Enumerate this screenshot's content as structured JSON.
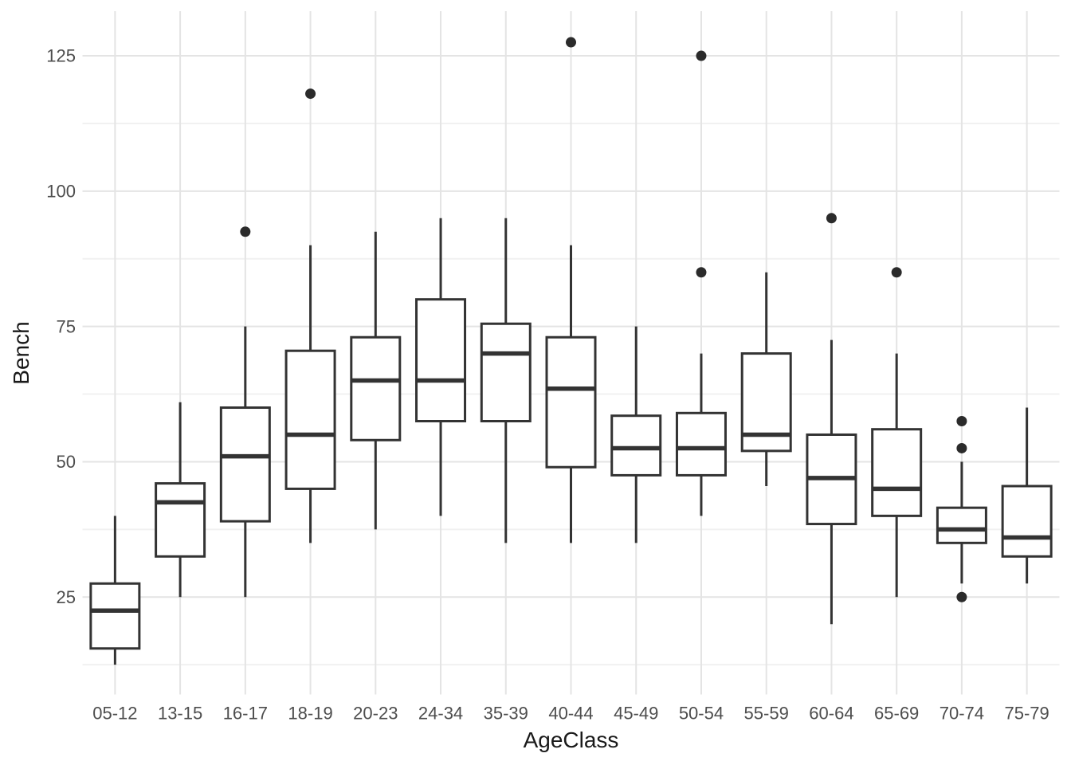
{
  "chart_data": {
    "type": "boxplot",
    "title": "",
    "xlabel": "AgeClass",
    "ylabel": "Bench",
    "ylim": [
      7,
      133.25
    ],
    "yticks_major": [
      25,
      50,
      75,
      100,
      125
    ],
    "yticks_minor": [
      12.5,
      37.5,
      62.5,
      87.5,
      112.5
    ],
    "grid": "major-and-minor",
    "legend": "none",
    "categories": [
      "05-12",
      "13-15",
      "16-17",
      "18-19",
      "20-23",
      "24-34",
      "35-39",
      "40-44",
      "45-49",
      "50-54",
      "55-59",
      "60-64",
      "65-69",
      "70-74",
      "75-79"
    ],
    "boxes": [
      {
        "category": "05-12",
        "whisker_low": 12.5,
        "q1": 15.5,
        "median": 22.5,
        "q3": 27.5,
        "whisker_high": 40,
        "outliers": []
      },
      {
        "category": "13-15",
        "whisker_low": 25,
        "q1": 32.5,
        "median": 42.5,
        "q3": 46,
        "whisker_high": 61,
        "outliers": []
      },
      {
        "category": "16-17",
        "whisker_low": 25,
        "q1": 39,
        "median": 51,
        "q3": 60,
        "whisker_high": 75,
        "outliers": [
          92.5
        ]
      },
      {
        "category": "18-19",
        "whisker_low": 35,
        "q1": 45,
        "median": 55,
        "q3": 70.5,
        "whisker_high": 90,
        "outliers": [
          118
        ]
      },
      {
        "category": "20-23",
        "whisker_low": 37.5,
        "q1": 54,
        "median": 65,
        "q3": 73,
        "whisker_high": 92.5,
        "outliers": []
      },
      {
        "category": "24-34",
        "whisker_low": 40,
        "q1": 57.5,
        "median": 65,
        "q3": 80,
        "whisker_high": 95,
        "outliers": []
      },
      {
        "category": "35-39",
        "whisker_low": 35,
        "q1": 57.5,
        "median": 70,
        "q3": 75.5,
        "whisker_high": 95,
        "outliers": []
      },
      {
        "category": "40-44",
        "whisker_low": 35,
        "q1": 49,
        "median": 63.5,
        "q3": 73,
        "whisker_high": 90,
        "outliers": [
          127.5
        ]
      },
      {
        "category": "45-49",
        "whisker_low": 35,
        "q1": 47.5,
        "median": 52.5,
        "q3": 58.5,
        "whisker_high": 75,
        "outliers": []
      },
      {
        "category": "50-54",
        "whisker_low": 40,
        "q1": 47.5,
        "median": 52.5,
        "q3": 59,
        "whisker_high": 70,
        "outliers": [
          85,
          125
        ]
      },
      {
        "category": "55-59",
        "whisker_low": 45.5,
        "q1": 52,
        "median": 55,
        "q3": 70,
        "whisker_high": 85,
        "outliers": []
      },
      {
        "category": "60-64",
        "whisker_low": 20,
        "q1": 38.5,
        "median": 47,
        "q3": 55,
        "whisker_high": 72.5,
        "outliers": [
          95
        ]
      },
      {
        "category": "65-69",
        "whisker_low": 25,
        "q1": 40,
        "median": 45,
        "q3": 56,
        "whisker_high": 70,
        "outliers": [
          85
        ]
      },
      {
        "category": "70-74",
        "whisker_low": 27.5,
        "q1": 35,
        "median": 37.5,
        "q3": 41.5,
        "whisker_high": 50,
        "outliers": [
          57.5,
          52.5,
          25
        ]
      },
      {
        "category": "75-79",
        "whisker_low": 27.5,
        "q1": 32.5,
        "median": 36,
        "q3": 45.5,
        "whisker_high": 60,
        "outliers": []
      }
    ]
  },
  "colors": {
    "background": "#ffffff",
    "grid_major": "#e4e4e4",
    "grid_minor": "#f1f1f1",
    "box_border": "#333333",
    "box_fill": "#ffffff",
    "median": "#333333",
    "outlier": "#2b2b2b",
    "tick_label": "#4d4d4d",
    "axis_title": "#1a1a1a"
  }
}
